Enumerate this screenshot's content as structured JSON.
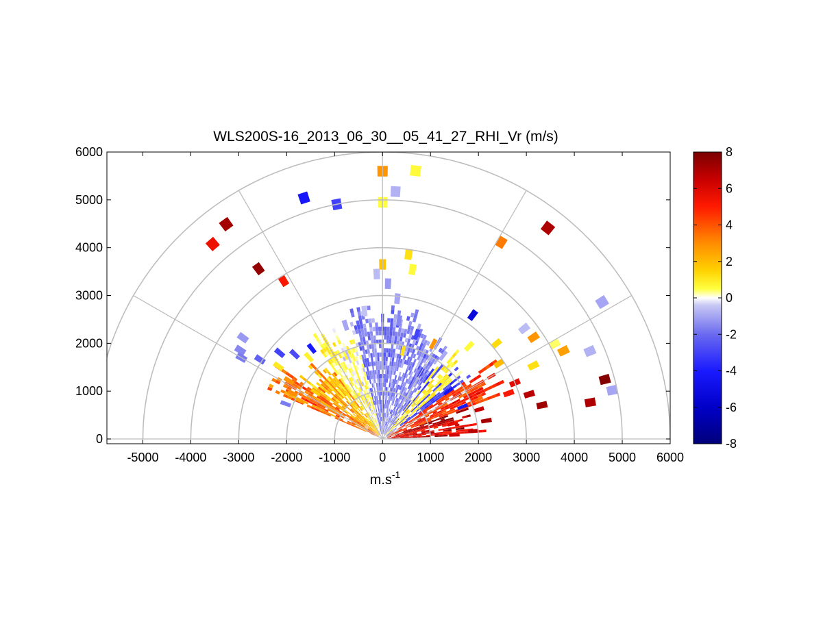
{
  "chart_data": {
    "type": "heatmap",
    "subtype": "polar-rhi-scan",
    "title": "WLS200S-16_2013_06_30__05_41_27_RHI_Vr (m/s)",
    "xlabel": "m.s",
    "xlabel_superscript": "-1",
    "ylabel": "",
    "xlim": [
      -5750,
      6000
    ],
    "ylim": [
      -100,
      6000
    ],
    "xticks": [
      -5000,
      -4000,
      -3000,
      -2000,
      -1000,
      0,
      1000,
      2000,
      3000,
      4000,
      5000,
      6000
    ],
    "yticks": [
      0,
      1000,
      2000,
      3000,
      4000,
      5000,
      6000
    ],
    "range_rings": [
      1000,
      2000,
      3000,
      4000,
      5000,
      6000
    ],
    "spokes_deg": [
      30,
      60,
      90,
      120,
      150
    ],
    "colorbar": {
      "min": -8,
      "max": 8,
      "ticks": [
        8,
        6,
        4,
        2,
        0,
        -2,
        -4,
        -6,
        -8
      ],
      "colormap": "blue-white-yellow-red",
      "stops": [
        {
          "v": -8,
          "c": "#00007a"
        },
        {
          "v": -6,
          "c": "#0000c8"
        },
        {
          "v": -4,
          "c": "#1a1aff"
        },
        {
          "v": -2,
          "c": "#6a6af0"
        },
        {
          "v": -0.4,
          "c": "#c8c8f4"
        },
        {
          "v": 0,
          "c": "#ffffff"
        },
        {
          "v": 0.5,
          "c": "#ffff40"
        },
        {
          "v": 1.5,
          "c": "#ffd200"
        },
        {
          "v": 3,
          "c": "#ff8c00"
        },
        {
          "v": 5,
          "c": "#ff1a00"
        },
        {
          "v": 6.5,
          "c": "#c80000"
        },
        {
          "v": 8,
          "c": "#7a0000"
        }
      ]
    },
    "cells": [
      {
        "r": 5600,
        "az": 90,
        "vr": 2.8
      },
      {
        "r": 5650,
        "az": 83,
        "vr": 0.6
      },
      {
        "r": 5180,
        "az": 87,
        "vr": -0.8
      },
      {
        "r": 4950,
        "az": 90,
        "vr": 0.5
      },
      {
        "r": 5300,
        "az": 108,
        "vr": -4.2
      },
      {
        "r": 5000,
        "az": 101,
        "vr": -3.0
      },
      {
        "r": 5550,
        "az": 126,
        "vr": 7.2
      },
      {
        "r": 5400,
        "az": 131,
        "vr": 5.5
      },
      {
        "r": 4400,
        "az": 126,
        "vr": 7.5
      },
      {
        "r": 3900,
        "az": 122,
        "vr": 5.2
      },
      {
        "r": 5600,
        "az": 52,
        "vr": 7.0
      },
      {
        "r": 4800,
        "az": 59,
        "vr": 3.3
      },
      {
        "r": 3900,
        "az": 82,
        "vr": 1.2
      },
      {
        "r": 3650,
        "az": 90,
        "vr": 1.8
      },
      {
        "r": 3600,
        "az": 80,
        "vr": 0.6
      },
      {
        "r": 3450,
        "az": 92,
        "vr": -0.6
      },
      {
        "r": 3250,
        "az": 88,
        "vr": -1.2
      },
      {
        "r": 5400,
        "az": 32,
        "vr": -1.0
      },
      {
        "r": 4700,
        "az": 23,
        "vr": -0.8
      },
      {
        "r": 4800,
        "az": 15,
        "vr": 7.8
      },
      {
        "r": 4400,
        "az": 10,
        "vr": 7.0
      },
      {
        "r": 3400,
        "az": 12,
        "vr": 7.3
      },
      {
        "r": 3200,
        "az": 17,
        "vr": 6.8
      },
      {
        "r": 4900,
        "az": 12,
        "vr": -1.0
      },
      {
        "r": 3200,
        "az": 54,
        "vr": -5.3
      },
      {
        "r": 4100,
        "az": 29,
        "vr": 0.4
      },
      {
        "r": 3750,
        "az": 38,
        "vr": -0.6
      },
      {
        "r": 3800,
        "az": 34,
        "vr": 2.8
      },
      {
        "r": 4200,
        "az": 26,
        "vr": 2.6
      },
      {
        "r": 3500,
        "az": 26,
        "vr": 1.2
      },
      {
        "r": 3600,
        "az": 144,
        "vr": -1.2
      },
      {
        "r": 3500,
        "az": 148,
        "vr": -1.5
      },
      {
        "r": 3400,
        "az": 150,
        "vr": -1.7
      },
      {
        "r": 3050,
        "az": 147,
        "vr": -2.2
      },
      {
        "r": 2800,
        "az": 140,
        "vr": -3.0
      },
      {
        "r": 2650,
        "az": 145,
        "vr": 1.0
      },
      {
        "r": 2550,
        "az": 136,
        "vr": -2.8
      },
      {
        "r": 2300,
        "az": 132,
        "vr": 0.8
      },
      {
        "r": 2400,
        "az": 128,
        "vr": -4.0
      },
      {
        "r": 2300,
        "az": 148,
        "vr": 2.8
      },
      {
        "r": 2100,
        "az": 153,
        "vr": 3.0
      },
      {
        "r": 1900,
        "az": 155,
        "vr": 2.6
      },
      {
        "r": 2150,
        "az": 160,
        "vr": -1.7
      },
      {
        "r": 1400,
        "az": 149,
        "vr": 2.2
      },
      {
        "r": 1200,
        "az": 151,
        "vr": 3.0
      },
      {
        "r": 1700,
        "az": 145,
        "vr": 1.6
      },
      {
        "r": 2500,
        "az": 108,
        "vr": -1.0
      },
      {
        "r": 2700,
        "az": 98,
        "vr": -0.5
      },
      {
        "r": 1700,
        "az": 119,
        "vr": 0.4
      },
      {
        "r": 1300,
        "az": 132,
        "vr": 0.7
      },
      {
        "r": 1900,
        "az": 77,
        "vr": 1.1
      },
      {
        "r": 2300,
        "az": 72,
        "vr": -3.0
      },
      {
        "r": 2250,
        "az": 62,
        "vr": 2.8
      },
      {
        "r": 2650,
        "az": 47,
        "vr": 0.6
      },
      {
        "r": 3100,
        "az": 40,
        "vr": 1.3
      },
      {
        "r": 2900,
        "az": 33,
        "vr": 2.0
      },
      {
        "r": 1800,
        "az": 44,
        "vr": 0.8
      },
      {
        "r": 2150,
        "az": 54,
        "vr": -0.9
      },
      {
        "r": 1600,
        "az": 60,
        "vr": -3.3
      },
      {
        "r": 1700,
        "az": 36,
        "vr": -4.5
      },
      {
        "r": 1800,
        "az": 22,
        "vr": -4.2
      },
      {
        "r": 2100,
        "az": 17,
        "vr": 6.5
      },
      {
        "r": 2200,
        "az": 10,
        "vr": 7.2
      },
      {
        "r": 1500,
        "az": 12,
        "vr": 5.8
      },
      {
        "r": 1900,
        "az": 5,
        "vr": 6.8
      },
      {
        "r": 1500,
        "az": 3,
        "vr": 6.2
      },
      {
        "r": 2800,
        "az": 20,
        "vr": 5.2
      },
      {
        "r": 3000,
        "az": 23,
        "vr": 5.8
      },
      {
        "r": 2500,
        "az": 82,
        "vr": -1.5
      },
      {
        "r": 2950,
        "az": 84,
        "vr": -1.0
      }
    ]
  }
}
